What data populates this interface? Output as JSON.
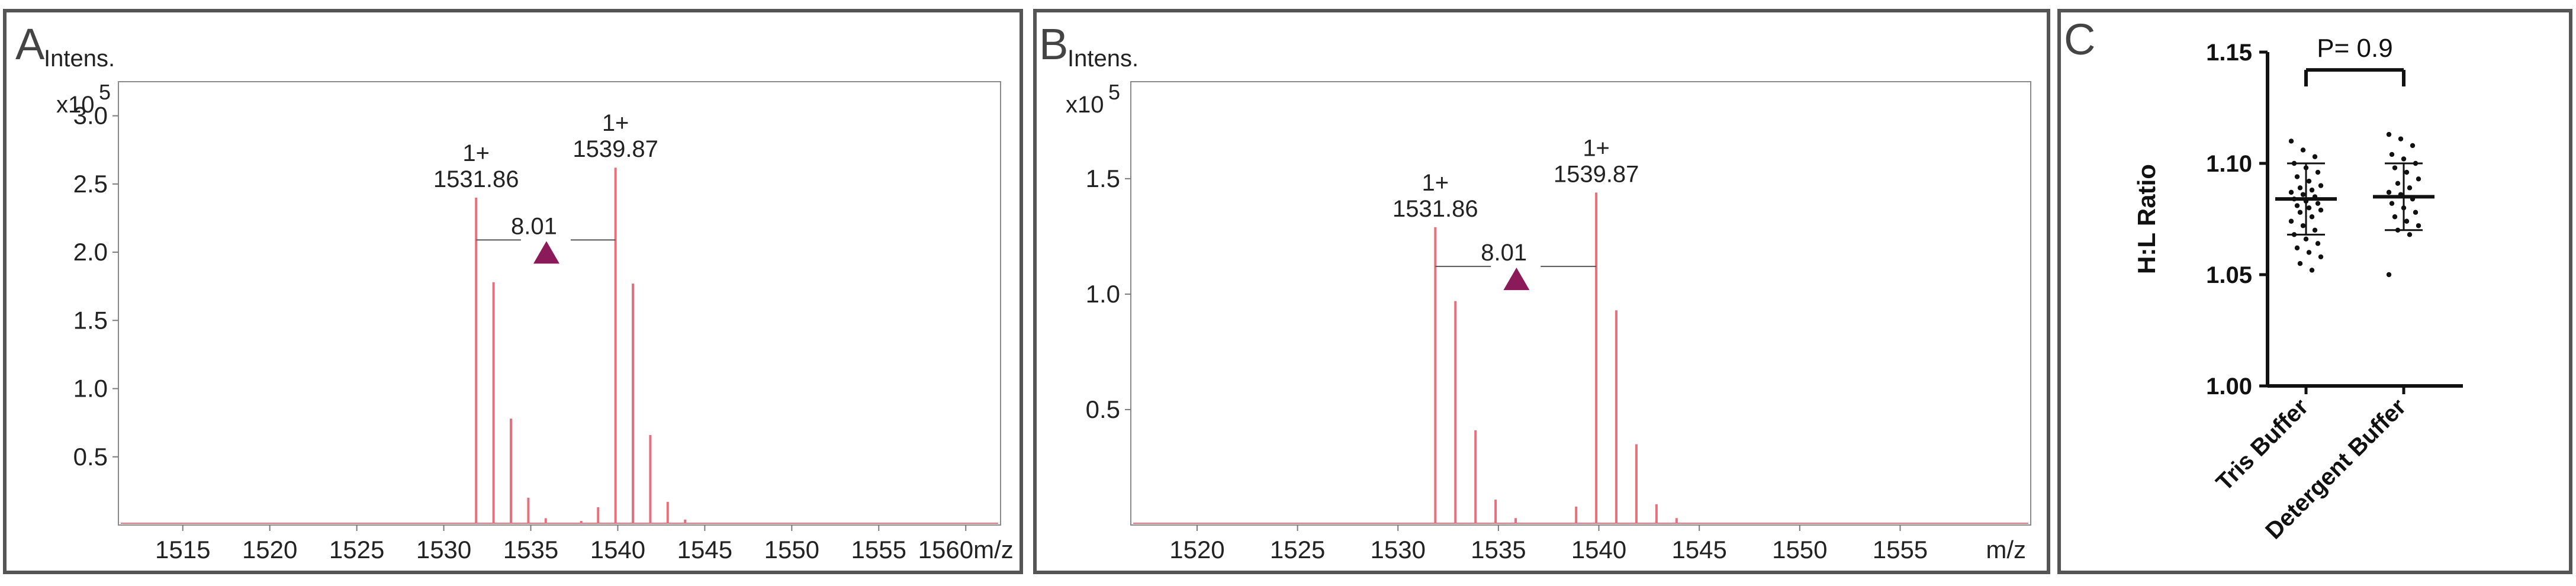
{
  "chart_data": [
    {
      "panel": "A",
      "type": "line",
      "panel_letter": "A",
      "ylabel": "Intens.",
      "scale_label": "x10",
      "scale_exponent": "5",
      "xunit": "m/z",
      "xlim": [
        1511.3,
        1562.0
      ],
      "ylim": [
        0,
        3.25
      ],
      "xticks": [
        1515,
        1520,
        1525,
        1530,
        1535,
        1540,
        1545,
        1550,
        1555,
        1560
      ],
      "xtick_labels": [
        "1515",
        "1520",
        "1525",
        "1530",
        "1535",
        "1540",
        "1545",
        "1550",
        "1555",
        "1560m/z"
      ],
      "yticks": [
        0.5,
        1.0,
        1.5,
        2.0,
        2.5,
        3.0
      ],
      "ytick_labels": [
        "0.5",
        "1.0",
        "1.5",
        "2.0",
        "2.5",
        "3.0"
      ],
      "color": "#e8707c",
      "marker_color": "#8b1a5a",
      "peaks": [
        {
          "x": 1531.86,
          "y": 2.4
        },
        {
          "x": 1532.86,
          "y": 1.78
        },
        {
          "x": 1533.86,
          "y": 0.78
        },
        {
          "x": 1534.86,
          "y": 0.2
        },
        {
          "x": 1535.86,
          "y": 0.05
        },
        {
          "x": 1537.9,
          "y": 0.03
        },
        {
          "x": 1538.87,
          "y": 0.13
        },
        {
          "x": 1539.87,
          "y": 2.62
        },
        {
          "x": 1540.87,
          "y": 1.77
        },
        {
          "x": 1541.87,
          "y": 0.66
        },
        {
          "x": 1542.87,
          "y": 0.17
        },
        {
          "x": 1543.87,
          "y": 0.04
        }
      ],
      "labels": [
        {
          "charge": "1+",
          "mz": "1531.86",
          "x": 1531.86,
          "y": 2.4
        },
        {
          "charge": "1+",
          "mz": "1539.87",
          "x": 1539.87,
          "y": 2.62
        }
      ],
      "delta": "8.01",
      "bracket_y": 2.09,
      "marker_x": 1535.9,
      "marker_y": 2.09
    },
    {
      "panel": "B",
      "type": "line",
      "panel_letter": "B",
      "ylabel": "Intens.",
      "scale_label": "x10",
      "scale_exponent": "5",
      "xunit": "m/z",
      "xlim": [
        1516.7,
        1561.5
      ],
      "ylim": [
        0,
        1.92
      ],
      "xticks": [
        1520,
        1525,
        1530,
        1535,
        1540,
        1545,
        1550,
        1555
      ],
      "xtick_labels": [
        "1520",
        "1525",
        "1530",
        "1535",
        "1540",
        "1545",
        "1550",
        "1555"
      ],
      "xunit_label": "m/z",
      "yticks": [
        0.5,
        1.0,
        1.5
      ],
      "ytick_labels": [
        "0.5",
        "1.0",
        "1.5"
      ],
      "color": "#e8707c",
      "marker_color": "#8b1a5a",
      "peaks": [
        {
          "x": 1531.86,
          "y": 1.29
        },
        {
          "x": 1532.86,
          "y": 0.97
        },
        {
          "x": 1533.86,
          "y": 0.41
        },
        {
          "x": 1534.86,
          "y": 0.11
        },
        {
          "x": 1535.86,
          "y": 0.03
        },
        {
          "x": 1538.87,
          "y": 0.08
        },
        {
          "x": 1539.87,
          "y": 1.44
        },
        {
          "x": 1540.87,
          "y": 0.93
        },
        {
          "x": 1541.87,
          "y": 0.35
        },
        {
          "x": 1542.87,
          "y": 0.09
        },
        {
          "x": 1543.87,
          "y": 0.03
        }
      ],
      "labels": [
        {
          "charge": "1+",
          "mz": "1531.86",
          "x": 1531.86,
          "y": 1.29
        },
        {
          "charge": "1+",
          "mz": "1539.87",
          "x": 1539.87,
          "y": 1.44
        }
      ],
      "delta": "8.01",
      "bracket_y": 1.12,
      "marker_x": 1535.9,
      "marker_y": 1.12
    },
    {
      "panel": "C",
      "type": "scatter",
      "panel_letter": "C",
      "categories": [
        "Tris Buffer",
        "Detergent Buffer"
      ],
      "ylabel": "H:L Ratio",
      "ylim": [
        1.0,
        1.15
      ],
      "yticks": [
        1.0,
        1.05,
        1.1,
        1.15
      ],
      "ytick_labels": [
        "1.00",
        "1.05",
        "1.10",
        "1.15"
      ],
      "significance": "P= 0.9",
      "groups": [
        {
          "name": "Tris Buffer",
          "mean": 1.084,
          "sd_low": 1.068,
          "sd_high": 1.1,
          "points": [
            1.11,
            1.106,
            1.103,
            1.1,
            1.098,
            1.096,
            1.094,
            1.092,
            1.09,
            1.089,
            1.088,
            1.087,
            1.086,
            1.085,
            1.084,
            1.083,
            1.082,
            1.081,
            1.08,
            1.079,
            1.078,
            1.076,
            1.074,
            1.072,
            1.07,
            1.068,
            1.066,
            1.064,
            1.062,
            1.06,
            1.058,
            1.055,
            1.052
          ]
        },
        {
          "name": "Detergent Buffer",
          "mean": 1.085,
          "sd_low": 1.07,
          "sd_high": 1.1,
          "points": [
            1.113,
            1.111,
            1.108,
            1.104,
            1.102,
            1.1,
            1.098,
            1.096,
            1.093,
            1.091,
            1.089,
            1.087,
            1.086,
            1.084,
            1.082,
            1.08,
            1.078,
            1.076,
            1.074,
            1.072,
            1.07,
            1.068,
            1.05
          ]
        }
      ]
    }
  ]
}
